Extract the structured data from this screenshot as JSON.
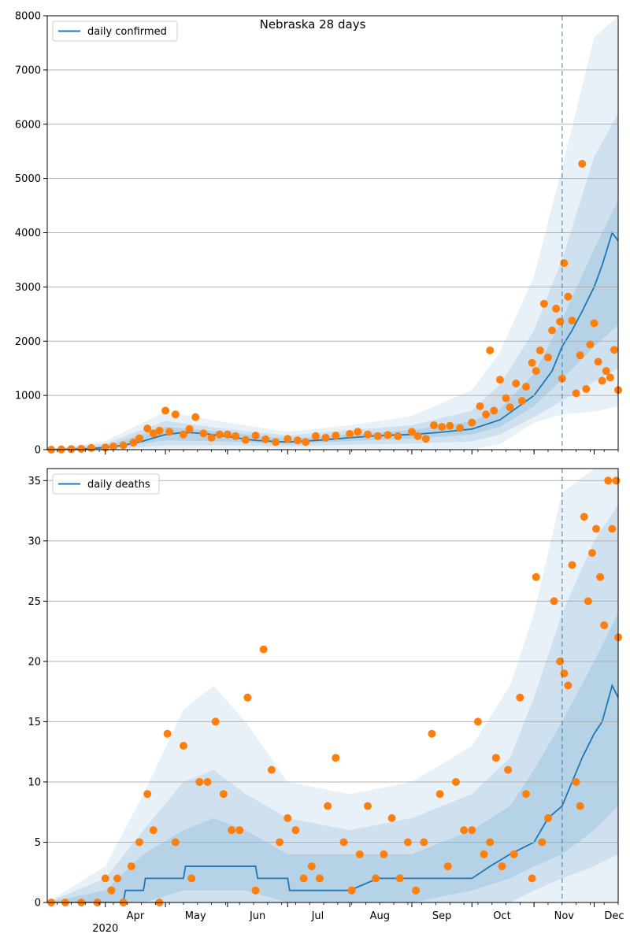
{
  "title": "Nebraska 28 days",
  "x_ticks": [
    "Apr",
    "May",
    "Jun",
    "Jul",
    "Aug",
    "Sep",
    "Oct",
    "Nov",
    "Dec"
  ],
  "x_year_label": "2020",
  "colors": {
    "line": "#1f77b4",
    "band": "#1f77b4",
    "points": "#ff7f0e",
    "grid": "#b0b0b0",
    "vline": "#1f77b4"
  },
  "chart_data": [
    {
      "type": "line",
      "panel": "top",
      "title": "Nebraska 28 days",
      "legend": "daily confirmed",
      "legend_position": "top-left",
      "xlim": [
        "2020-03-03",
        "2020-12-13"
      ],
      "ylim": [
        0,
        8000
      ],
      "yticks": [
        0,
        1000,
        2000,
        3000,
        4000,
        5000,
        6000,
        7000,
        8000
      ],
      "grid": "horizontal",
      "vline_x": "2020-11-15",
      "series": [
        {
          "name": "daily confirmed",
          "x": [
            "2020-03-03",
            "2020-03-15",
            "2020-03-25",
            "2020-04-01",
            "2020-04-10",
            "2020-04-20",
            "2020-04-30",
            "2020-05-10",
            "2020-05-20",
            "2020-06-01",
            "2020-06-15",
            "2020-07-01",
            "2020-07-15",
            "2020-08-01",
            "2020-08-15",
            "2020-09-01",
            "2020-09-15",
            "2020-10-01",
            "2020-10-15",
            "2020-11-01",
            "2020-11-10",
            "2020-11-15",
            "2020-11-20",
            "2020-11-25",
            "2020-12-01",
            "2020-12-05",
            "2020-12-10",
            "2020-12-13"
          ],
          "y": [
            0,
            10,
            20,
            40,
            80,
            160,
            270,
            320,
            300,
            240,
            170,
            140,
            170,
            220,
            260,
            280,
            320,
            380,
            550,
            1000,
            1450,
            1900,
            2200,
            2550,
            3000,
            3400,
            4000,
            3850
          ]
        }
      ],
      "bands": [
        {
          "x": [
            "2020-03-03",
            "2020-04-01",
            "2020-05-01",
            "2020-06-01",
            "2020-07-01",
            "2020-08-01",
            "2020-09-01",
            "2020-10-01",
            "2020-10-15",
            "2020-11-01",
            "2020-11-15",
            "2020-12-01",
            "2020-12-13"
          ],
          "lower": [
            0,
            0,
            0,
            0,
            0,
            0,
            0,
            0,
            100,
            500,
            650,
            700,
            800
          ],
          "upper": [
            0,
            160,
            700,
            500,
            330,
            450,
            620,
            1100,
            1800,
            3200,
            5200,
            7600,
            8000
          ]
        },
        {
          "x": [
            "2020-03-03",
            "2020-04-01",
            "2020-05-01",
            "2020-06-01",
            "2020-07-01",
            "2020-08-01",
            "2020-09-01",
            "2020-10-01",
            "2020-10-15",
            "2020-11-01",
            "2020-11-15",
            "2020-12-01",
            "2020-12-13"
          ],
          "lower": [
            0,
            0,
            80,
            80,
            60,
            90,
            110,
            150,
            280,
            600,
            900,
            1250,
            1500
          ],
          "upper": [
            0,
            110,
            530,
            380,
            260,
            360,
            450,
            720,
            1200,
            2200,
            3500,
            5400,
            6200
          ]
        },
        {
          "x": [
            "2020-03-03",
            "2020-04-01",
            "2020-05-01",
            "2020-06-01",
            "2020-07-01",
            "2020-08-01",
            "2020-09-01",
            "2020-10-01",
            "2020-10-15",
            "2020-11-01",
            "2020-11-15",
            "2020-12-01",
            "2020-12-13"
          ],
          "lower": [
            0,
            10,
            170,
            150,
            100,
            160,
            200,
            280,
            420,
            800,
            1300,
            1900,
            2300
          ],
          "upper": [
            0,
            70,
            420,
            320,
            200,
            280,
            360,
            520,
            750,
            1400,
            2400,
            3700,
            4600
          ]
        }
      ],
      "points": {
        "name": "observed",
        "x": [
          "2020-03-05",
          "2020-03-10",
          "2020-03-15",
          "2020-03-20",
          "2020-03-25",
          "2020-04-01",
          "2020-04-05",
          "2020-04-10",
          "2020-04-15",
          "2020-04-18",
          "2020-04-22",
          "2020-04-25",
          "2020-04-28",
          "2020-05-01",
          "2020-05-03",
          "2020-05-06",
          "2020-05-10",
          "2020-05-13",
          "2020-05-16",
          "2020-05-20",
          "2020-05-24",
          "2020-05-28",
          "2020-06-01",
          "2020-06-05",
          "2020-06-10",
          "2020-06-15",
          "2020-06-20",
          "2020-06-25",
          "2020-07-01",
          "2020-07-06",
          "2020-07-10",
          "2020-07-15",
          "2020-07-20",
          "2020-07-25",
          "2020-08-01",
          "2020-08-05",
          "2020-08-10",
          "2020-08-15",
          "2020-08-20",
          "2020-08-25",
          "2020-09-01",
          "2020-09-04",
          "2020-09-08",
          "2020-09-12",
          "2020-09-16",
          "2020-09-20",
          "2020-09-25",
          "2020-10-01",
          "2020-10-05",
          "2020-10-08",
          "2020-10-10",
          "2020-10-12",
          "2020-10-15",
          "2020-10-18",
          "2020-10-20",
          "2020-10-23",
          "2020-10-26",
          "2020-10-28",
          "2020-10-31",
          "2020-11-02",
          "2020-11-04",
          "2020-11-06",
          "2020-11-08",
          "2020-11-10",
          "2020-11-12",
          "2020-11-14",
          "2020-11-15",
          "2020-11-16",
          "2020-11-18",
          "2020-11-20",
          "2020-11-22",
          "2020-11-24",
          "2020-11-25",
          "2020-11-27",
          "2020-11-29",
          "2020-12-01",
          "2020-12-03",
          "2020-12-05",
          "2020-12-07",
          "2020-12-09",
          "2020-12-11",
          "2020-12-13"
        ],
        "y": [
          0,
          5,
          10,
          15,
          30,
          40,
          60,
          80,
          130,
          210,
          390,
          300,
          350,
          720,
          330,
          650,
          280,
          380,
          600,
          300,
          220,
          280,
          280,
          250,
          180,
          260,
          190,
          140,
          200,
          170,
          140,
          250,
          220,
          260,
          290,
          330,
          280,
          250,
          270,
          250,
          330,
          250,
          200,
          450,
          420,
          440,
          400,
          500,
          800,
          650,
          1830,
          720,
          1290,
          950,
          780,
          1220,
          900,
          1160,
          1600,
          1450,
          1830,
          2690,
          1700,
          2200,
          2600,
          2360,
          1310,
          3440,
          2820,
          2380,
          1040,
          1740,
          5270,
          1120,
          1940,
          2330,
          1620,
          1270,
          1450,
          1330,
          1840,
          1100
        ]
      }
    },
    {
      "type": "line",
      "panel": "bottom",
      "legend": "daily deaths",
      "legend_position": "top-left",
      "xlim": [
        "2020-03-03",
        "2020-12-13"
      ],
      "ylim": [
        0,
        36
      ],
      "yticks": [
        0,
        5,
        10,
        15,
        20,
        25,
        30,
        35
      ],
      "grid": "horizontal",
      "vline_x": "2020-11-15",
      "series": [
        {
          "name": "daily deaths",
          "x": [
            "2020-03-03",
            "2020-04-10",
            "2020-04-11",
            "2020-04-20",
            "2020-04-21",
            "2020-05-10",
            "2020-05-11",
            "2020-06-15",
            "2020-06-16",
            "2020-07-01",
            "2020-07-02",
            "2020-08-01",
            "2020-08-15",
            "2020-09-01",
            "2020-10-01",
            "2020-10-10",
            "2020-10-20",
            "2020-11-01",
            "2020-11-08",
            "2020-11-15",
            "2020-11-20",
            "2020-11-25",
            "2020-12-01",
            "2020-12-05",
            "2020-12-10",
            "2020-12-13"
          ],
          "y": [
            0,
            0,
            1,
            1,
            2,
            2,
            3,
            3,
            2,
            2,
            1,
            1,
            2,
            2,
            2,
            3,
            4,
            5,
            7,
            8,
            10,
            12,
            14,
            15,
            18,
            17
          ]
        }
      ],
      "bands": [
        {
          "x": [
            "2020-03-03",
            "2020-04-01",
            "2020-04-20",
            "2020-05-10",
            "2020-05-25",
            "2020-06-10",
            "2020-07-01",
            "2020-08-01",
            "2020-09-01",
            "2020-10-01",
            "2020-10-20",
            "2020-11-01",
            "2020-11-15",
            "2020-12-01",
            "2020-12-13"
          ],
          "lower": [
            0,
            0,
            0,
            0,
            0,
            0,
            0,
            0,
            0,
            0,
            0,
            0,
            0,
            0,
            0
          ],
          "upper": [
            0,
            3,
            9,
            16,
            18,
            15,
            10,
            9,
            10,
            13,
            18,
            24,
            34,
            36,
            36
          ]
        },
        {
          "x": [
            "2020-03-03",
            "2020-04-01",
            "2020-04-20",
            "2020-05-10",
            "2020-05-25",
            "2020-06-10",
            "2020-07-01",
            "2020-08-01",
            "2020-09-01",
            "2020-10-01",
            "2020-10-20",
            "2020-11-01",
            "2020-11-15",
            "2020-12-01",
            "2020-12-13"
          ],
          "lower": [
            0,
            0,
            0,
            0,
            0,
            0,
            0,
            0,
            0,
            0,
            0,
            1,
            2,
            3,
            4
          ],
          "upper": [
            0,
            2,
            6,
            10,
            11,
            9,
            7,
            6,
            7,
            9,
            12,
            17,
            24,
            30,
            33
          ]
        },
        {
          "x": [
            "2020-03-03",
            "2020-04-01",
            "2020-04-20",
            "2020-05-10",
            "2020-05-25",
            "2020-06-10",
            "2020-07-01",
            "2020-08-01",
            "2020-09-01",
            "2020-10-01",
            "2020-10-20",
            "2020-11-01",
            "2020-11-15",
            "2020-12-01",
            "2020-12-13"
          ],
          "lower": [
            0,
            0,
            0,
            1,
            1,
            1,
            0,
            0,
            0,
            1,
            2,
            3,
            4,
            6,
            8
          ],
          "upper": [
            0,
            1,
            4,
            6,
            7,
            6,
            4,
            4,
            4,
            6,
            8,
            11,
            15,
            20,
            24
          ]
        }
      ],
      "points": {
        "name": "observed",
        "x": [
          "2020-03-05",
          "2020-03-12",
          "2020-03-20",
          "2020-03-28",
          "2020-04-01",
          "2020-04-04",
          "2020-04-07",
          "2020-04-10",
          "2020-04-14",
          "2020-04-18",
          "2020-04-22",
          "2020-04-25",
          "2020-04-28",
          "2020-05-02",
          "2020-05-06",
          "2020-05-10",
          "2020-05-14",
          "2020-05-18",
          "2020-05-22",
          "2020-05-26",
          "2020-05-30",
          "2020-06-03",
          "2020-06-07",
          "2020-06-11",
          "2020-06-15",
          "2020-06-19",
          "2020-06-23",
          "2020-06-27",
          "2020-07-01",
          "2020-07-05",
          "2020-07-09",
          "2020-07-13",
          "2020-07-17",
          "2020-07-21",
          "2020-07-25",
          "2020-07-29",
          "2020-08-02",
          "2020-08-06",
          "2020-08-10",
          "2020-08-14",
          "2020-08-18",
          "2020-08-22",
          "2020-08-26",
          "2020-08-30",
          "2020-09-03",
          "2020-09-07",
          "2020-09-11",
          "2020-09-15",
          "2020-09-19",
          "2020-09-23",
          "2020-09-27",
          "2020-10-01",
          "2020-10-04",
          "2020-10-07",
          "2020-10-10",
          "2020-10-13",
          "2020-10-16",
          "2020-10-19",
          "2020-10-22",
          "2020-10-25",
          "2020-10-28",
          "2020-10-31",
          "2020-11-02",
          "2020-11-05",
          "2020-11-08",
          "2020-11-11",
          "2020-11-14",
          "2020-11-16",
          "2020-11-18",
          "2020-11-20",
          "2020-11-22",
          "2020-11-24",
          "2020-11-26",
          "2020-11-28",
          "2020-11-30",
          "2020-12-02",
          "2020-12-04",
          "2020-12-06",
          "2020-12-08",
          "2020-12-10",
          "2020-12-12",
          "2020-12-13"
        ],
        "y": [
          0,
          0,
          0,
          0,
          2,
          1,
          2,
          0,
          3,
          5,
          9,
          6,
          0,
          14,
          5,
          13,
          2,
          10,
          10,
          15,
          9,
          6,
          6,
          17,
          1,
          21,
          11,
          5,
          7,
          6,
          2,
          3,
          2,
          8,
          12,
          5,
          1,
          4,
          8,
          2,
          4,
          7,
          2,
          5,
          1,
          5,
          14,
          9,
          3,
          10,
          6,
          6,
          15,
          4,
          5,
          12,
          3,
          11,
          4,
          17,
          9,
          2,
          27,
          5,
          7,
          25,
          20,
          19,
          18,
          28,
          10,
          8,
          32,
          25,
          29,
          31,
          27,
          23,
          35,
          31,
          35,
          22
        ]
      }
    }
  ]
}
